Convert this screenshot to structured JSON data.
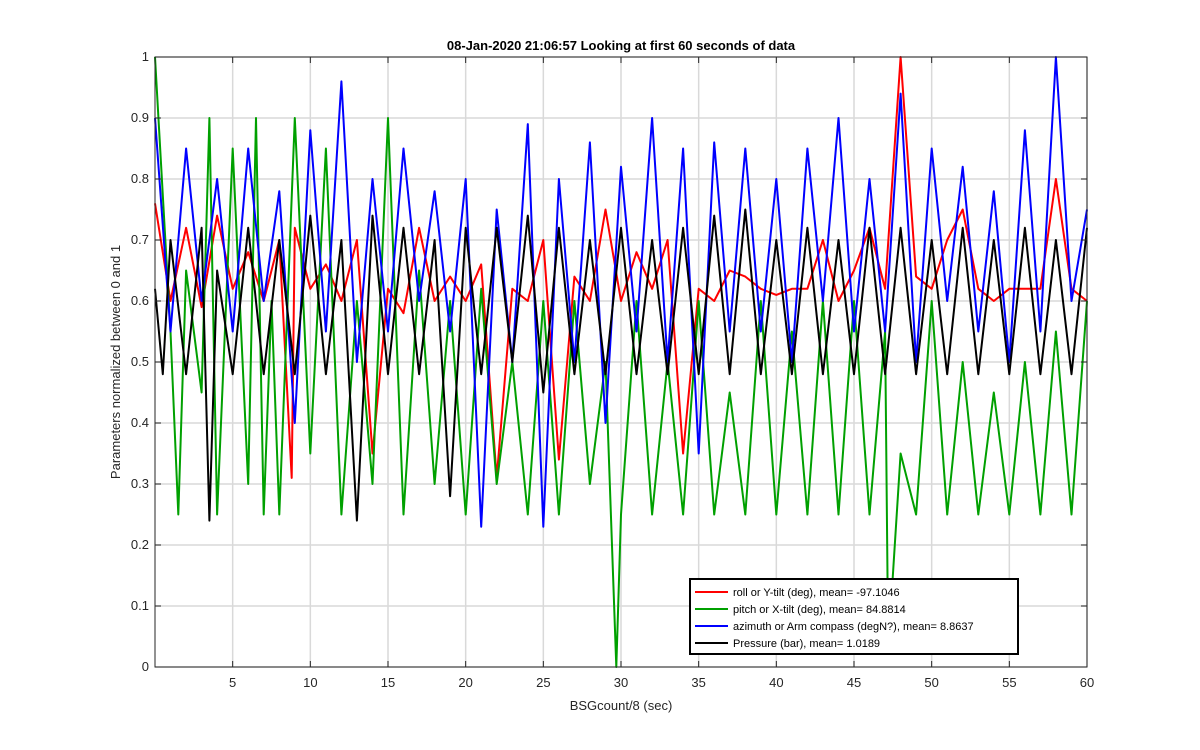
{
  "chart_data": {
    "type": "line",
    "title": "08-Jan-2020 21:06:57 Looking at first 60 seconds of data",
    "xlabel": "BSGcount/8 (sec)",
    "ylabel": "Parameters normalized between 0 and 1",
    "xlim": [
      0,
      60
    ],
    "ylim": [
      0,
      1
    ],
    "grid": true,
    "legend_position": "bottom-right",
    "x_ticks": [
      {
        "value": 5,
        "label": "5"
      },
      {
        "value": 10,
        "label": "10"
      },
      {
        "value": 15,
        "label": "15"
      },
      {
        "value": 20,
        "label": "20"
      },
      {
        "value": 25,
        "label": "25"
      },
      {
        "value": 30,
        "label": "30"
      },
      {
        "value": 35,
        "label": "35"
      },
      {
        "value": 40,
        "label": "40"
      },
      {
        "value": 45,
        "label": "45"
      },
      {
        "value": 50,
        "label": "50"
      },
      {
        "value": 55,
        "label": "55"
      },
      {
        "value": 60,
        "label": "60"
      }
    ],
    "y_ticks": [
      {
        "value": 0,
        "label": "0"
      },
      {
        "value": 0.1,
        "label": "0.1"
      },
      {
        "value": 0.2,
        "label": "0.2"
      },
      {
        "value": 0.3,
        "label": "0.3"
      },
      {
        "value": 0.4,
        "label": "0.4"
      },
      {
        "value": 0.5,
        "label": "0.5"
      },
      {
        "value": 0.6,
        "label": "0.6"
      },
      {
        "value": 0.7,
        "label": "0.7"
      },
      {
        "value": 0.8,
        "label": "0.8"
      },
      {
        "value": 0.9,
        "label": "0.9"
      },
      {
        "value": 1,
        "label": "1"
      }
    ],
    "series": [
      {
        "name": "roll or Y-tilt (deg), mean= -97.1046",
        "color": "#ff0000",
        "x": [
          0,
          1,
          2,
          3,
          4,
          5,
          6,
          7,
          8,
          8.8,
          9,
          10,
          11,
          12,
          13,
          14,
          15,
          16,
          17,
          18,
          19,
          20,
          21,
          22,
          23,
          24,
          25,
          26,
          27,
          28,
          29,
          30,
          31,
          32,
          33,
          34,
          35,
          36,
          37,
          38,
          39,
          40,
          41,
          42,
          43,
          44,
          45,
          46,
          47,
          48,
          49,
          50,
          51,
          52,
          53,
          54,
          55,
          56,
          57,
          58,
          59,
          60
        ],
        "y": [
          0.76,
          0.6,
          0.72,
          0.59,
          0.74,
          0.62,
          0.68,
          0.6,
          0.7,
          0.31,
          0.72,
          0.62,
          0.66,
          0.6,
          0.7,
          0.35,
          0.62,
          0.58,
          0.72,
          0.6,
          0.64,
          0.6,
          0.66,
          0.31,
          0.62,
          0.6,
          0.7,
          0.34,
          0.64,
          0.6,
          0.75,
          0.6,
          0.68,
          0.62,
          0.7,
          0.35,
          0.62,
          0.6,
          0.65,
          0.64,
          0.62,
          0.61,
          0.62,
          0.62,
          0.7,
          0.6,
          0.65,
          0.72,
          0.62,
          1.0,
          0.64,
          0.62,
          0.7,
          0.75,
          0.62,
          0.6,
          0.62,
          0.62,
          0.62,
          0.8,
          0.62,
          0.6
        ]
      },
      {
        "name": "pitch or X-tilt (deg), mean= 84.8814",
        "color": "#00a000",
        "x": [
          0,
          1,
          1.5,
          2,
          3,
          3.5,
          4,
          5,
          6,
          6.5,
          7,
          7.5,
          8,
          9,
          10,
          11,
          12,
          13,
          14,
          15,
          16,
          17,
          18,
          19,
          20,
          21,
          22,
          23,
          24,
          25,
          26,
          27,
          28,
          29,
          29.7,
          30,
          31,
          32,
          33,
          34,
          35,
          36,
          37,
          38,
          39,
          40,
          41,
          42,
          43,
          44,
          45,
          46,
          47,
          47.2,
          48,
          49,
          50,
          51,
          52,
          53,
          54,
          55,
          56,
          57,
          58,
          59,
          60
        ],
        "y": [
          1.0,
          0.55,
          0.25,
          0.65,
          0.45,
          0.9,
          0.25,
          0.85,
          0.3,
          0.9,
          0.25,
          0.6,
          0.25,
          0.9,
          0.35,
          0.85,
          0.25,
          0.6,
          0.3,
          0.9,
          0.25,
          0.65,
          0.3,
          0.6,
          0.25,
          0.62,
          0.3,
          0.5,
          0.25,
          0.6,
          0.25,
          0.6,
          0.3,
          0.5,
          0.0,
          0.25,
          0.6,
          0.25,
          0.5,
          0.25,
          0.6,
          0.25,
          0.45,
          0.25,
          0.6,
          0.25,
          0.55,
          0.25,
          0.6,
          0.25,
          0.6,
          0.25,
          0.55,
          0.03,
          0.35,
          0.25,
          0.6,
          0.25,
          0.5,
          0.25,
          0.45,
          0.25,
          0.5,
          0.25,
          0.55,
          0.25,
          0.6
        ]
      },
      {
        "name": "azimuth or Arm compass (degN?), mean= 8.8637",
        "color": "#0000ff",
        "x": [
          0,
          1,
          2,
          3,
          4,
          5,
          6,
          7,
          8,
          9,
          10,
          11,
          12,
          13,
          14,
          15,
          16,
          17,
          18,
          19,
          20,
          21,
          22,
          23,
          24,
          25,
          26,
          27,
          28,
          29,
          30,
          31,
          32,
          33,
          34,
          35,
          36,
          37,
          38,
          39,
          40,
          41,
          42,
          43,
          44,
          45,
          46,
          47,
          48,
          49,
          50,
          51,
          52,
          53,
          54,
          55,
          56,
          57,
          58,
          59,
          60
        ],
        "y": [
          0.9,
          0.55,
          0.85,
          0.6,
          0.8,
          0.55,
          0.85,
          0.6,
          0.78,
          0.4,
          0.88,
          0.55,
          0.96,
          0.5,
          0.8,
          0.55,
          0.85,
          0.6,
          0.78,
          0.55,
          0.8,
          0.23,
          0.75,
          0.5,
          0.89,
          0.23,
          0.8,
          0.5,
          0.86,
          0.4,
          0.82,
          0.55,
          0.9,
          0.5,
          0.85,
          0.35,
          0.86,
          0.55,
          0.85,
          0.55,
          0.8,
          0.5,
          0.85,
          0.6,
          0.9,
          0.55,
          0.8,
          0.55,
          0.94,
          0.5,
          0.85,
          0.6,
          0.82,
          0.55,
          0.78,
          0.5,
          0.88,
          0.55,
          1.0,
          0.6,
          0.75
        ]
      },
      {
        "name": "Pressure (bar), mean= 1.0189",
        "color": "#000000",
        "x": [
          0,
          0.5,
          1,
          2,
          3,
          3.5,
          4,
          5,
          6,
          7,
          8,
          9,
          10,
          11,
          12,
          13,
          14,
          15,
          16,
          17,
          18,
          19,
          20,
          21,
          22,
          23,
          24,
          25,
          26,
          27,
          28,
          29,
          30,
          31,
          32,
          33,
          34,
          35,
          36,
          37,
          38,
          39,
          40,
          41,
          42,
          43,
          44,
          45,
          46,
          47,
          48,
          49,
          50,
          51,
          52,
          53,
          54,
          55,
          56,
          57,
          58,
          59,
          60
        ],
        "y": [
          0.62,
          0.48,
          0.7,
          0.48,
          0.72,
          0.24,
          0.65,
          0.48,
          0.72,
          0.48,
          0.7,
          0.48,
          0.74,
          0.48,
          0.7,
          0.24,
          0.74,
          0.48,
          0.72,
          0.48,
          0.7,
          0.28,
          0.72,
          0.48,
          0.72,
          0.5,
          0.74,
          0.45,
          0.72,
          0.48,
          0.7,
          0.48,
          0.72,
          0.48,
          0.7,
          0.48,
          0.72,
          0.48,
          0.74,
          0.48,
          0.75,
          0.48,
          0.7,
          0.48,
          0.72,
          0.48,
          0.7,
          0.48,
          0.72,
          0.48,
          0.72,
          0.48,
          0.7,
          0.48,
          0.72,
          0.48,
          0.7,
          0.48,
          0.72,
          0.48,
          0.7,
          0.48,
          0.72
        ]
      }
    ]
  }
}
